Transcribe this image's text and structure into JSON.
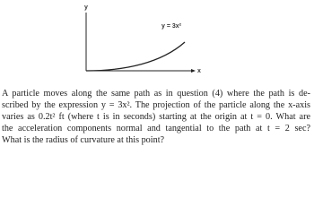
{
  "figure": {
    "y_axis_label": "y",
    "x_axis_label": "x",
    "curve_label": "y = 3x²"
  },
  "problem": {
    "lines": [
      "A particle moves along the same path as in question (4) where the path is de-",
      "scribed by the expression y = 3x². The projection of the particle along the x-axis",
      "varies as 0.2t² ft (where t is in seconds) starting at the origin at t = 0. What are",
      "the acceleration components normal and tangential to the path at t = 2 sec?",
      "What is the radius of curvature at this point?"
    ]
  }
}
